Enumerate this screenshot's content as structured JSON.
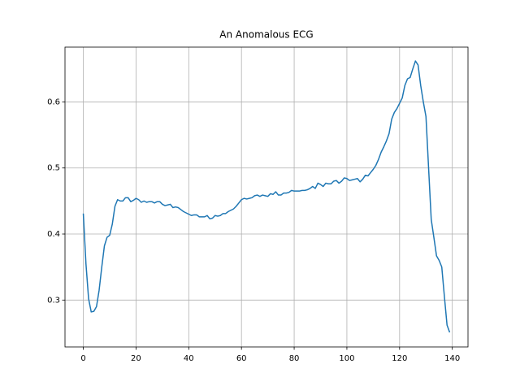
{
  "chart_data": {
    "type": "line",
    "title": "An Anomalous ECG",
    "x": [
      0,
      1,
      2,
      3,
      4,
      5,
      6,
      7,
      8,
      9,
      10,
      11,
      12,
      13,
      14,
      15,
      16,
      17,
      18,
      19,
      20,
      21,
      22,
      23,
      24,
      25,
      26,
      27,
      28,
      29,
      30,
      31,
      32,
      33,
      34,
      35,
      36,
      37,
      38,
      39,
      40,
      41,
      42,
      43,
      44,
      45,
      46,
      47,
      48,
      49,
      50,
      51,
      52,
      53,
      54,
      55,
      56,
      57,
      58,
      59,
      60,
      61,
      62,
      63,
      64,
      65,
      66,
      67,
      68,
      69,
      70,
      71,
      72,
      73,
      74,
      75,
      76,
      77,
      78,
      79,
      80,
      81,
      82,
      83,
      84,
      85,
      86,
      87,
      88,
      89,
      90,
      91,
      92,
      93,
      94,
      95,
      96,
      97,
      98,
      99,
      100,
      101,
      102,
      103,
      104,
      105,
      106,
      107,
      108,
      109,
      110,
      111,
      112,
      113,
      114,
      115,
      116,
      117,
      118,
      119,
      120,
      121,
      122,
      123,
      124,
      125,
      126,
      127,
      128,
      129,
      130,
      131,
      132,
      133,
      134,
      135,
      136,
      137,
      138,
      139
    ],
    "series": [
      {
        "color": "#1f77b4",
        "values": [
          0.431,
          0.355,
          0.302,
          0.282,
          0.283,
          0.29,
          0.315,
          0.35,
          0.382,
          0.395,
          0.398,
          0.415,
          0.442,
          0.452,
          0.45,
          0.45,
          0.455,
          0.455,
          0.449,
          0.451,
          0.454,
          0.452,
          0.448,
          0.45,
          0.448,
          0.449,
          0.449,
          0.447,
          0.449,
          0.449,
          0.445,
          0.443,
          0.444,
          0.445,
          0.44,
          0.441,
          0.44,
          0.437,
          0.434,
          0.432,
          0.43,
          0.428,
          0.429,
          0.429,
          0.426,
          0.426,
          0.426,
          0.428,
          0.423,
          0.424,
          0.428,
          0.427,
          0.428,
          0.431,
          0.431,
          0.434,
          0.436,
          0.438,
          0.442,
          0.447,
          0.452,
          0.454,
          0.453,
          0.454,
          0.455,
          0.458,
          0.459,
          0.457,
          0.459,
          0.458,
          0.457,
          0.461,
          0.46,
          0.464,
          0.459,
          0.459,
          0.462,
          0.462,
          0.463,
          0.466,
          0.465,
          0.465,
          0.465,
          0.466,
          0.466,
          0.467,
          0.469,
          0.472,
          0.469,
          0.477,
          0.475,
          0.472,
          0.477,
          0.476,
          0.476,
          0.48,
          0.481,
          0.477,
          0.48,
          0.485,
          0.484,
          0.481,
          0.482,
          0.483,
          0.484,
          0.479,
          0.483,
          0.489,
          0.488,
          0.493,
          0.498,
          0.504,
          0.513,
          0.524,
          0.532,
          0.541,
          0.552,
          0.574,
          0.584,
          0.59,
          0.598,
          0.606,
          0.625,
          0.635,
          0.637,
          0.65,
          0.662,
          0.656,
          0.625,
          0.6,
          0.578,
          0.5,
          0.422,
          0.395,
          0.367,
          0.36,
          0.35,
          0.305,
          0.262,
          0.251
        ]
      }
    ],
    "xlim": [
      -6.95,
      145.95
    ],
    "xticks": [
      0,
      20,
      40,
      60,
      80,
      100,
      120,
      140
    ],
    "ylim": [
      0.229,
      0.683
    ],
    "yticks": [
      0.3,
      0.4,
      0.5,
      0.6
    ],
    "grid": true
  }
}
